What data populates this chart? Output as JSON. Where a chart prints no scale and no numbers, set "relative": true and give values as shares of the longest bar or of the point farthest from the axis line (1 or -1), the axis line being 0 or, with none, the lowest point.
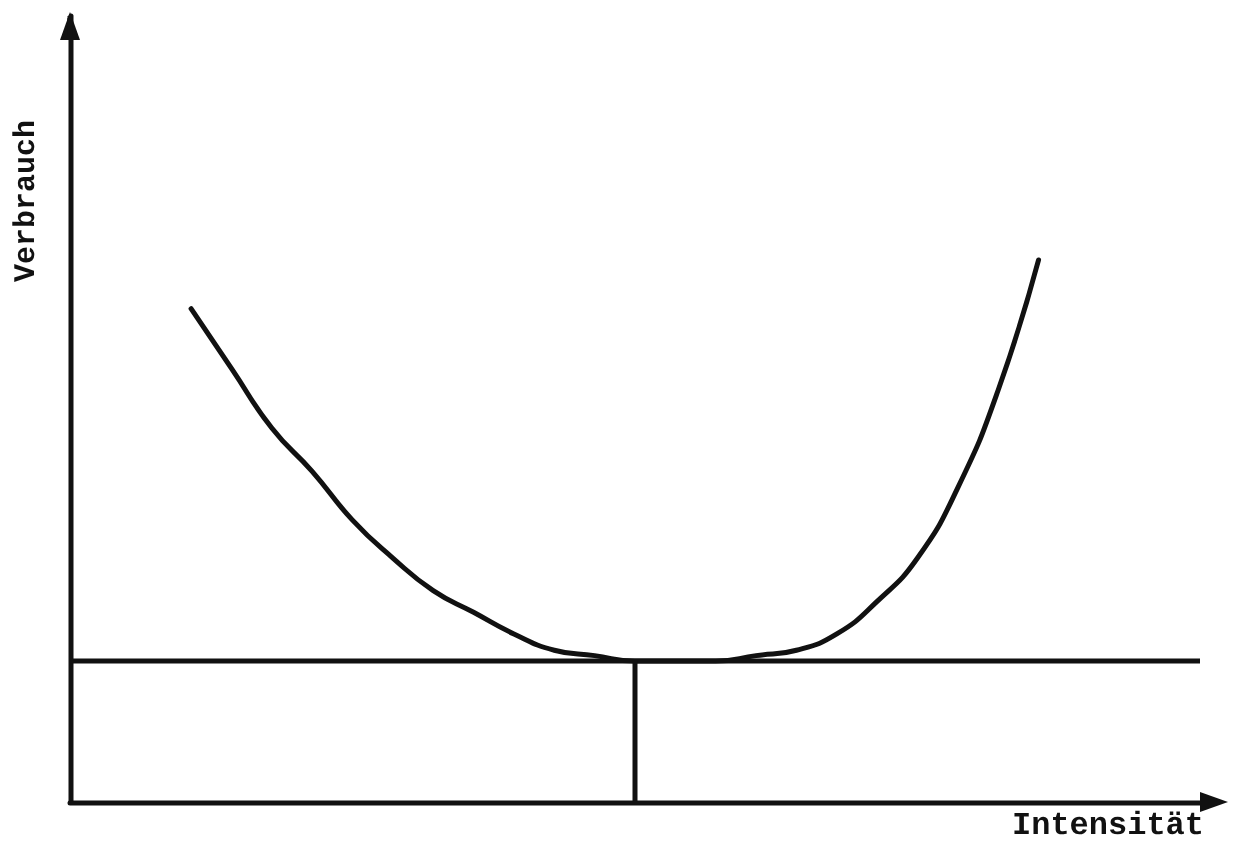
{
  "chart_data": {
    "type": "line",
    "relative": true,
    "xlabel": "Intensität",
    "ylabel": "Verbrauch",
    "categories": [
      null,
      null,
      null,
      null,
      null,
      null,
      null,
      null,
      null,
      null,
      null,
      null,
      null,
      null,
      null,
      null,
      null,
      null,
      null,
      null,
      null,
      null,
      null,
      null,
      null,
      null,
      null,
      null,
      null
    ],
    "series": [
      {
        "color": "#111111",
        "values": [
          null,
          null,
          null,
          0.91,
          0.8,
          0.69,
          0.61,
          0.52,
          0.45,
          0.39,
          0.35,
          0.31,
          0.28,
          0.27,
          0.26,
          0.26,
          0.26,
          0.27,
          0.28,
          0.31,
          0.37,
          0.45,
          0.58,
          0.76,
          1,
          null,
          null,
          null,
          null
        ]
      }
    ],
    "ref_lines": [
      {
        "axis": "y",
        "value": 0.26,
        "color": "#111111"
      }
    ],
    "grid": false,
    "marker": "none",
    "line_style": "solid"
  }
}
